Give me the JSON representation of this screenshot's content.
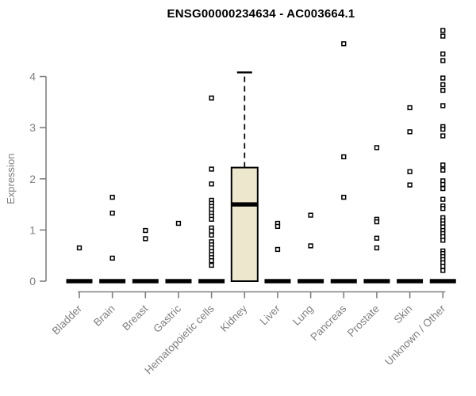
{
  "chart_data": {
    "type": "boxplot",
    "title": "ENSG00000234634 - AC003664.1",
    "xlabel": "",
    "ylabel": "Expression",
    "yticks": [
      0,
      1,
      2,
      3,
      4
    ],
    "ylim": [
      0,
      4.95
    ],
    "grid": false,
    "legend": "none",
    "categories": [
      {
        "label": "Bladder",
        "box": {
          "q1": 0,
          "median": 0,
          "q3": 0,
          "w_low": 0,
          "w_high": 0
        },
        "outliers": [
          0.65
        ]
      },
      {
        "label": "Brain",
        "box": {
          "q1": 0,
          "median": 0,
          "q3": 0,
          "w_low": 0,
          "w_high": 0
        },
        "outliers": [
          1.64,
          1.33,
          0.45
        ]
      },
      {
        "label": "Breast",
        "box": {
          "q1": 0,
          "median": 0,
          "q3": 0,
          "w_low": 0,
          "w_high": 0
        },
        "outliers": [
          0.99,
          0.83
        ]
      },
      {
        "label": "Gastric",
        "box": {
          "q1": 0,
          "median": 0,
          "q3": 0,
          "w_low": 0,
          "w_high": 0
        },
        "outliers": [
          1.13
        ]
      },
      {
        "label": "Hematopoietic cells",
        "box": {
          "q1": 0,
          "median": 0,
          "q3": 0,
          "w_low": 0,
          "w_high": 0
        },
        "outliers": [
          3.58,
          2.19,
          1.9,
          1.58,
          1.52,
          1.46,
          1.4,
          1.33,
          1.27,
          1.21,
          1.04,
          0.98,
          0.9,
          0.77,
          0.71,
          0.65,
          0.58,
          0.52,
          0.46,
          0.4,
          0.31
        ]
      },
      {
        "label": "Kidney",
        "box": {
          "q1": 0,
          "median": 1.5,
          "q3": 2.22,
          "w_low": 0,
          "w_high": 4.08
        },
        "outliers": []
      },
      {
        "label": "Liver",
        "box": {
          "q1": 0,
          "median": 0,
          "q3": 0,
          "w_low": 0,
          "w_high": 0
        },
        "outliers": [
          1.13,
          1.07,
          0.62
        ]
      },
      {
        "label": "Lung",
        "box": {
          "q1": 0,
          "median": 0,
          "q3": 0,
          "w_low": 0,
          "w_high": 0
        },
        "outliers": [
          1.29,
          0.69
        ]
      },
      {
        "label": "Pancreas",
        "box": {
          "q1": 0,
          "median": 0,
          "q3": 0,
          "w_low": 0,
          "w_high": 0
        },
        "outliers": [
          4.64,
          2.43,
          1.64
        ]
      },
      {
        "label": "Prostate",
        "box": {
          "q1": 0,
          "median": 0,
          "q3": 0,
          "w_low": 0,
          "w_high": 0
        },
        "outliers": [
          2.61,
          1.21,
          1.16,
          0.84,
          0.65
        ]
      },
      {
        "label": "Skin",
        "box": {
          "q1": 0,
          "median": 0,
          "q3": 0,
          "w_low": 0,
          "w_high": 0
        },
        "outliers": [
          3.39,
          2.92,
          2.14,
          1.88
        ]
      },
      {
        "label": "Unknown / Other",
        "box": {
          "q1": 0,
          "median": 0,
          "q3": 0,
          "w_low": 0,
          "w_high": 0
        },
        "outliers": [
          4.9,
          4.79,
          4.44,
          4.31,
          3.97,
          3.84,
          3.73,
          3.43,
          3.02,
          2.97,
          2.84,
          2.27,
          2.17,
          1.96,
          1.89,
          1.81,
          1.6,
          1.47,
          1.42,
          1.24,
          1.18,
          1.12,
          1.06,
          0.99,
          0.93,
          0.87,
          0.8,
          0.59,
          0.54,
          0.48,
          0.42,
          0.36,
          0.29,
          0.21
        ]
      }
    ],
    "colors": {
      "box_fill": "#EDE8CD",
      "box_stroke": "#000000",
      "median": "#000000",
      "zero_bar": "#000000",
      "outlier_fill": "#FFFFFF",
      "outlier_stroke": "#000000",
      "axis": "#808080",
      "tick_text": "#808080",
      "title": "#000000",
      "background": "#FFFFFF"
    }
  }
}
